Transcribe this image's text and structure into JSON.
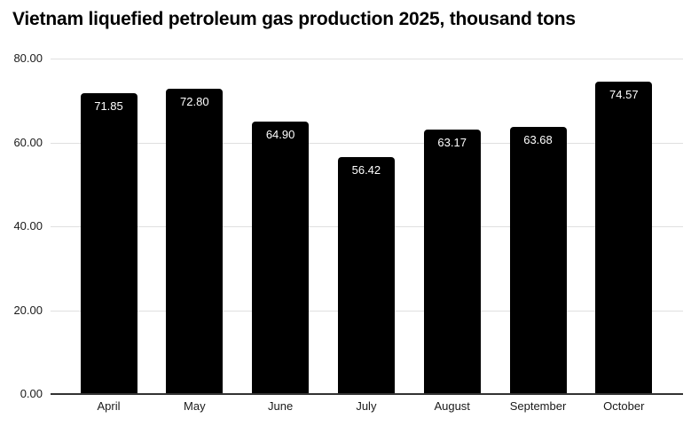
{
  "title": "Vietnam liquefied petroleum gas production 2025, thousand tons",
  "chart_data": {
    "type": "bar",
    "title": "Vietnam liquefied petroleum gas production 2025, thousand tons",
    "categories": [
      "April",
      "May",
      "June",
      "July",
      "August",
      "September",
      "October"
    ],
    "values": [
      71.85,
      72.8,
      64.9,
      56.42,
      63.17,
      63.68,
      74.57
    ],
    "value_labels": [
      "71.85",
      "72.80",
      "64.90",
      "56.42",
      "63.17",
      "63.68",
      "74.57"
    ],
    "xlabel": "",
    "ylabel": "",
    "ylim": [
      0,
      80
    ],
    "yticks": [
      0,
      20,
      40,
      60,
      80
    ],
    "ytick_labels": [
      "0.00",
      "20.00",
      "40.00",
      "60.00",
      "80.00"
    ],
    "grid": true,
    "legend": false,
    "legend_position": "none",
    "colors": {
      "bar": "#000000",
      "bar_label": "#ffffff",
      "grid": "#e0e0e0",
      "zero_axis": "#333333",
      "tick_text": "#1a1a1a",
      "title_text": "#000000",
      "background": "#ffffff"
    }
  }
}
